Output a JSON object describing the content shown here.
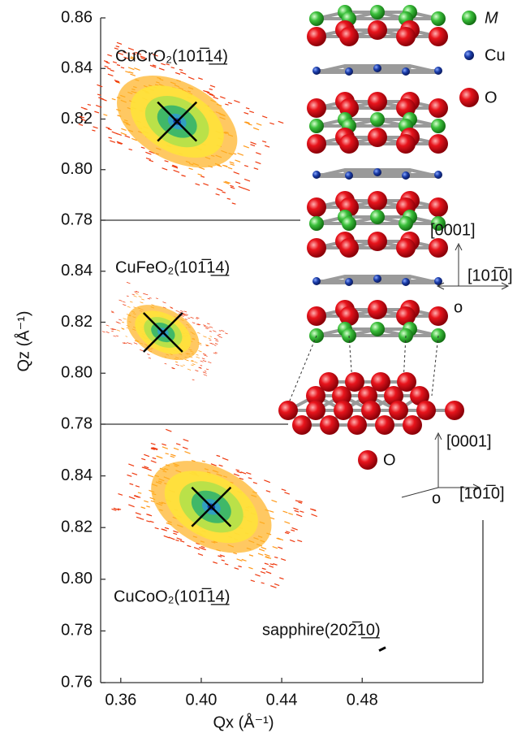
{
  "chart_data": [
    {
      "type": "scatter",
      "annotation": "CuCrO₂(101̅1̲4̲)",
      "xlim": [
        0.35,
        0.54
      ],
      "ylim": [
        0.78,
        0.86
      ],
      "yticks": [
        0.78,
        {
          "value": 0.8,
          "label": "0.80"
        },
        0.82,
        0.84,
        0.86
      ],
      "series": [
        {
          "color": "#000000",
          "marker": "cross",
          "x": [
            0.388
          ],
          "values": [
            0.819
          ]
        }
      ]
    },
    {
      "type": "scatter",
      "annotation": "CuFeO₂(101̅1̲4̲)",
      "ylabel": "Qz (Å⁻¹)",
      "xlim": [
        0.35,
        0.54
      ],
      "ylim": [
        0.78,
        0.86
      ],
      "yticks": [
        0.78,
        {
          "value": 0.8,
          "label": "0.80"
        },
        0.82,
        0.84
      ],
      "series": [
        {
          "color": "#000000",
          "marker": "cross",
          "x": [
            0.381
          ],
          "values": [
            0.816
          ]
        }
      ]
    },
    {
      "type": "scatter",
      "annotations": [
        "CuCoO₂(101̅1̲4̲)",
        "sapphire(202̅1̲0̲)"
      ],
      "xlabel": "Qx (Å⁻¹)",
      "xlim": [
        0.35,
        0.54
      ],
      "ylim": [
        0.76,
        0.86
      ],
      "xticks": [
        0.36,
        {
          "value": 0.4,
          "label": "0.40"
        },
        0.44,
        0.48
      ],
      "yticks": [
        0.76,
        0.78,
        {
          "value": 0.8,
          "label": "0.80"
        },
        0.82,
        0.84
      ],
      "series": [
        {
          "color": "#000000",
          "marker": "cross",
          "x": [
            0.405
          ],
          "values": [
            0.828
          ]
        },
        {
          "color": "#000000",
          "marker": "dash",
          "x": [
            0.49
          ],
          "values": [
            0.773
          ]
        }
      ]
    }
  ],
  "structure": {
    "legend": [
      "M",
      "Cu",
      "O"
    ],
    "upper_axes": {
      "vertical": "[0001]",
      "horizontal": "[101̅0]",
      "origin": "o"
    },
    "lower_axes": {
      "vertical": "[0001]",
      "horizontal": "[101̅0]",
      "origin": "o"
    },
    "substrate_label": "O"
  }
}
